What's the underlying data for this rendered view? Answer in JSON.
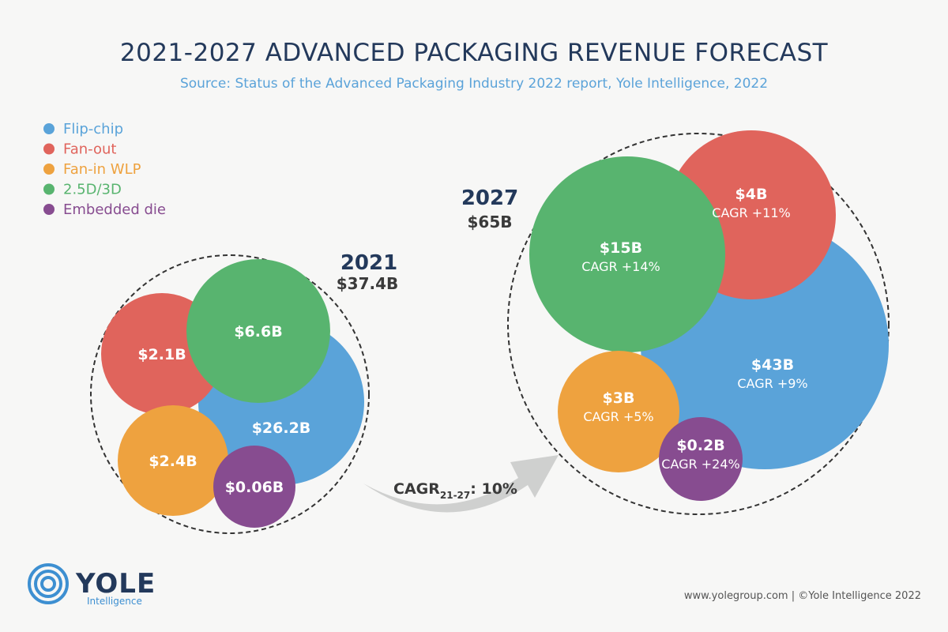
{
  "title": "2021-2027 ADVANCED PACKAGING REVENUE FORECAST",
  "subtitle": "Source: Status of the Advanced Packaging Industry 2022 report, Yole Intelligence, 2022",
  "legend": [
    {
      "label": "Flip-chip",
      "color": "#5aa3d9"
    },
    {
      "label": "Fan-out",
      "color": "#e0645c"
    },
    {
      "label": "Fan-in WLP",
      "color": "#eea23f"
    },
    {
      "label": "2.5D/3D",
      "color": "#58b46f"
    },
    {
      "label": "Embedded die",
      "color": "#874c90"
    }
  ],
  "cagr_arrow": {
    "prefix": "CAGR",
    "sub": "21-27",
    "suffix": ": 10%"
  },
  "logo": {
    "name": "YOLE",
    "sub": "Intelligence"
  },
  "footer": "www.yolegroup.com | ©Yole Intelligence 2022",
  "chart_data": {
    "type": "bubble",
    "unit": "$B",
    "series_names": [
      "Flip-chip",
      "Fan-out",
      "Fan-in WLP",
      "2.5D/3D",
      "Embedded die"
    ],
    "groups": [
      {
        "year": "2021",
        "total_label": "$37.4B",
        "total": 37.4,
        "segments": [
          {
            "name": "Flip-chip",
            "value": 26.2,
            "label": "$26.2B"
          },
          {
            "name": "Fan-out",
            "value": 2.1,
            "label": "$2.1B"
          },
          {
            "name": "Fan-in WLP",
            "value": 2.4,
            "label": "$2.4B"
          },
          {
            "name": "2.5D/3D",
            "value": 6.6,
            "label": "$6.6B"
          },
          {
            "name": "Embedded die",
            "value": 0.06,
            "label": "$0.06B"
          }
        ]
      },
      {
        "year": "2027",
        "total_label": "$65B",
        "total": 65,
        "segments": [
          {
            "name": "Flip-chip",
            "value": 43,
            "label": "$43B",
            "cagr": "CAGR +9%"
          },
          {
            "name": "Fan-out",
            "value": 4,
            "label": "$4B",
            "cagr": "CAGR +11%"
          },
          {
            "name": "Fan-in WLP",
            "value": 3,
            "label": "$3B",
            "cagr": "CAGR +5%"
          },
          {
            "name": "2.5D/3D",
            "value": 15,
            "label": "$15B",
            "cagr": "CAGR +14%"
          },
          {
            "name": "Embedded die",
            "value": 0.2,
            "label": "$0.2B",
            "cagr": "CAGR +24%"
          }
        ]
      }
    ]
  }
}
